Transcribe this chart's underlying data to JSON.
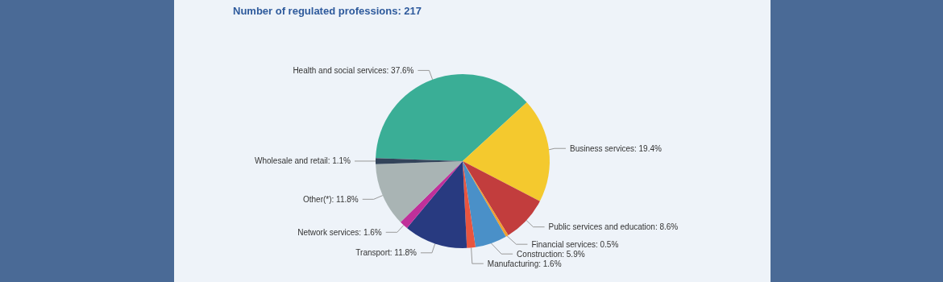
{
  "chart_data": {
    "type": "pie",
    "title": "Number of regulated professions: 217",
    "categories": [
      "Health and social services",
      "Business services",
      "Public services and education",
      "Financial services",
      "Construction",
      "Manufacturing",
      "Transport",
      "Network services",
      "Other(*)",
      "Wholesale and retail"
    ],
    "values": [
      37.6,
      19.4,
      8.6,
      0.5,
      5.9,
      1.6,
      11.8,
      1.6,
      11.8,
      1.1
    ],
    "value_labels": [
      "37.6%",
      "19.4%",
      "8.6%",
      "0.5%",
      "5.9%",
      "1.6%",
      "11.8%",
      "1.6%",
      "11.8%",
      "1.1%"
    ],
    "colors": [
      "#3aae96",
      "#f4c92e",
      "#c23d3d",
      "#f0a030",
      "#4a90c8",
      "#e8553f",
      "#283a80",
      "#c0309a",
      "#a9b4b4",
      "#33445a"
    ],
    "legend": false
  }
}
